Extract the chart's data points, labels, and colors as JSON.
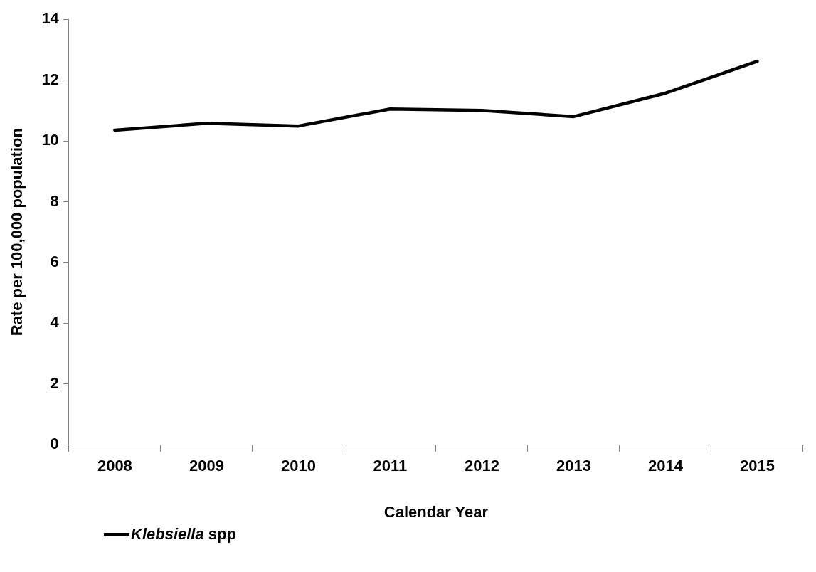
{
  "chart_data": {
    "type": "line",
    "xlabel": "Calendar Year",
    "ylabel": "Rate per 100,000 population",
    "categories": [
      "2008",
      "2009",
      "2010",
      "2011",
      "2012",
      "2013",
      "2014",
      "2015"
    ],
    "series": [
      {
        "name": "Klebsiella spp",
        "color": "#000000",
        "values": [
          10.35,
          10.58,
          10.49,
          11.05,
          11.0,
          10.8,
          11.57,
          12.62
        ]
      }
    ],
    "ylim": [
      0,
      14
    ],
    "yticks": [
      0,
      2,
      4,
      6,
      8,
      10,
      12,
      14
    ],
    "grid": false,
    "legend": "bottom left",
    "marker": "none",
    "line_style": "solid"
  }
}
